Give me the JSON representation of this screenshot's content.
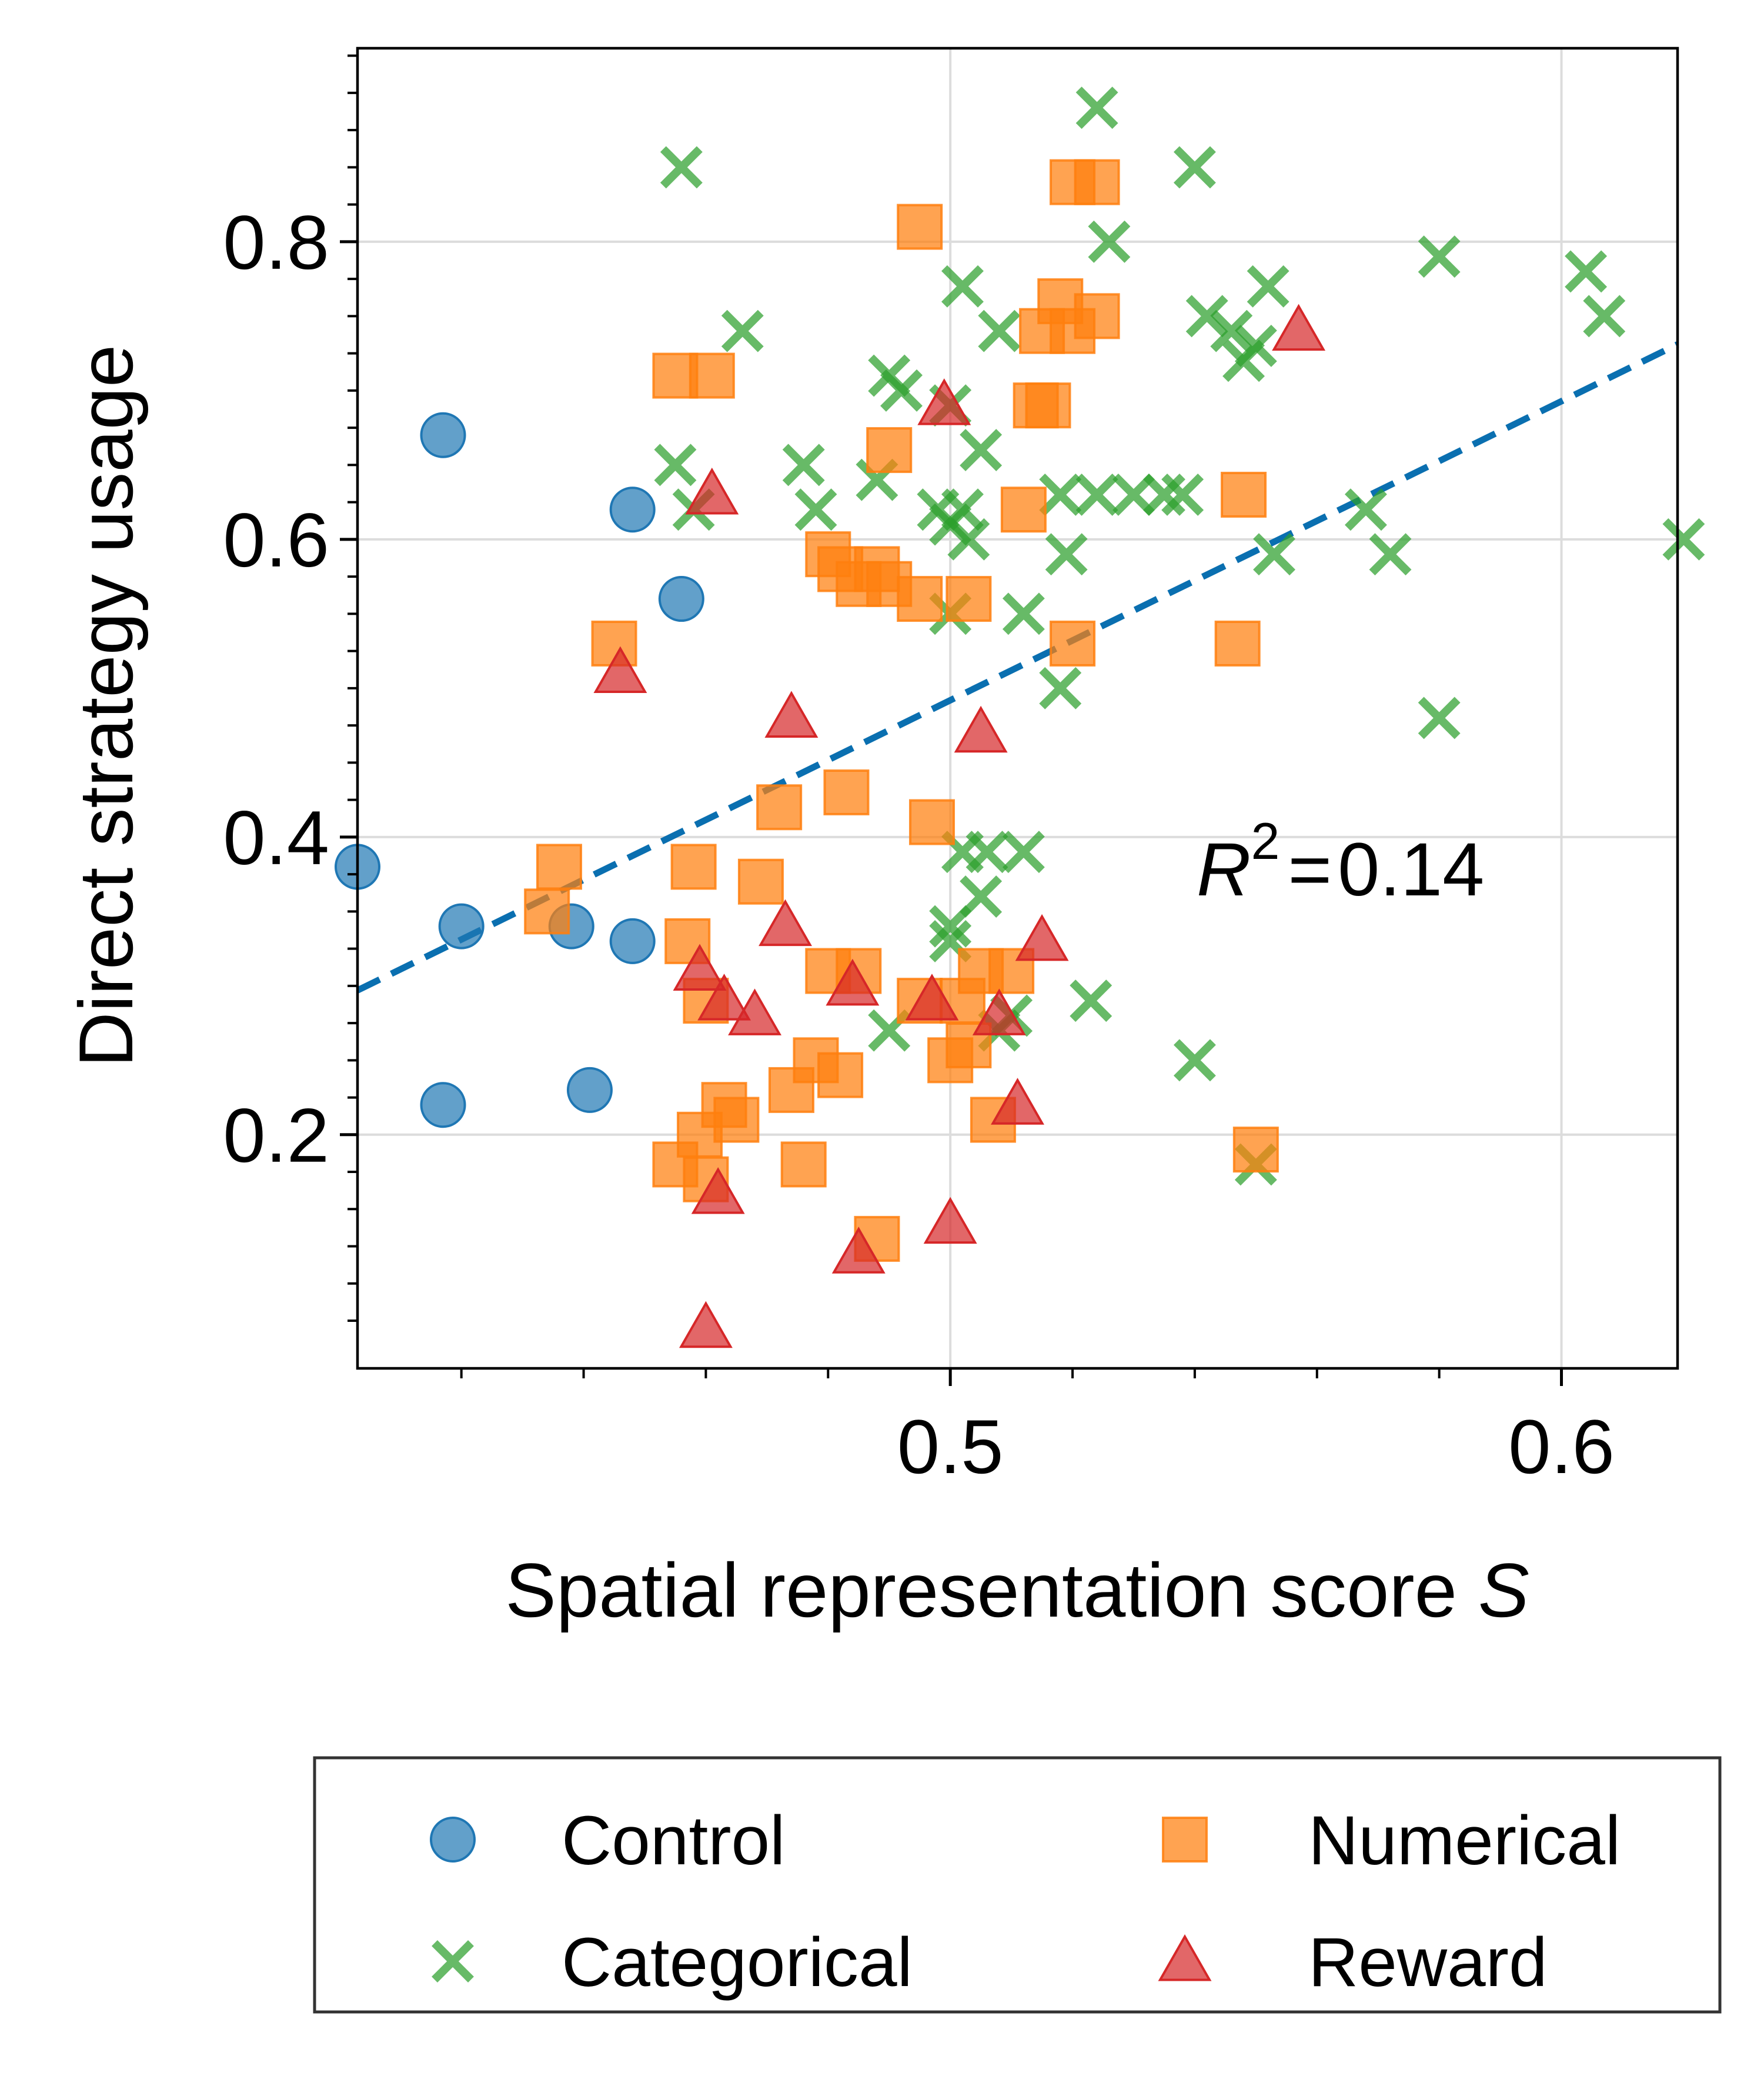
{
  "chart_data": {
    "type": "scatter",
    "xlabel": "Spatial representation score",
    "xlabel_var": "S",
    "ylabel": "Direct strategy usage",
    "xlim": [
      0.403,
      0.619
    ],
    "ylim": [
      0.043,
      0.93
    ],
    "x_ticks": [
      0.5,
      0.6
    ],
    "x_tick_labels": [
      "0.5",
      "0.6"
    ],
    "y_ticks": [
      0.2,
      0.4,
      0.6,
      0.8
    ],
    "y_tick_labels": [
      "0.2",
      "0.4",
      "0.6",
      "0.8"
    ],
    "grid": true,
    "legend_placement": "below",
    "annotation": {
      "r_symbol": "R",
      "sup": "2",
      "eq": "=",
      "value": "0.14"
    },
    "fit_line": {
      "x": [
        0.403,
        0.619
      ],
      "y": [
        0.297,
        0.731
      ],
      "color": "#0a6fb0"
    },
    "series": [
      {
        "name": "Control",
        "marker": "circle",
        "color": "#1f77b4",
        "points": [
          [
            0.403,
            0.38
          ],
          [
            0.42,
            0.34
          ],
          [
            0.417,
            0.67
          ],
          [
            0.417,
            0.22
          ],
          [
            0.438,
            0.34
          ],
          [
            0.441,
            0.23
          ],
          [
            0.448,
            0.62
          ],
          [
            0.448,
            0.33
          ],
          [
            0.456,
            0.56
          ]
        ]
      },
      {
        "name": "Categorical",
        "marker": "x",
        "color": "#2ca02c",
        "points": [
          [
            0.456,
            0.85
          ],
          [
            0.455,
            0.65
          ],
          [
            0.458,
            0.62
          ],
          [
            0.466,
            0.74
          ],
          [
            0.476,
            0.65
          ],
          [
            0.478,
            0.62
          ],
          [
            0.49,
            0.71
          ],
          [
            0.492,
            0.7
          ],
          [
            0.488,
            0.64
          ],
          [
            0.498,
            0.62
          ],
          [
            0.5,
            0.69
          ],
          [
            0.5,
            0.61
          ],
          [
            0.502,
            0.62
          ],
          [
            0.503,
            0.6
          ],
          [
            0.502,
            0.77
          ],
          [
            0.508,
            0.74
          ],
          [
            0.505,
            0.66
          ],
          [
            0.5,
            0.55
          ],
          [
            0.5,
            0.34
          ],
          [
            0.5,
            0.33
          ],
          [
            0.502,
            0.39
          ],
          [
            0.506,
            0.39
          ],
          [
            0.505,
            0.36
          ],
          [
            0.512,
            0.39
          ],
          [
            0.512,
            0.55
          ],
          [
            0.518,
            0.63
          ],
          [
            0.519,
            0.59
          ],
          [
            0.518,
            0.5
          ],
          [
            0.524,
            0.63
          ],
          [
            0.524,
            0.89
          ],
          [
            0.526,
            0.8
          ],
          [
            0.53,
            0.63
          ],
          [
            0.535,
            0.63
          ],
          [
            0.538,
            0.63
          ],
          [
            0.54,
            0.85
          ],
          [
            0.542,
            0.75
          ],
          [
            0.546,
            0.74
          ],
          [
            0.548,
            0.72
          ],
          [
            0.55,
            0.73
          ],
          [
            0.552,
            0.77
          ],
          [
            0.553,
            0.59
          ],
          [
            0.523,
            0.29
          ],
          [
            0.54,
            0.25
          ],
          [
            0.55,
            0.18
          ],
          [
            0.51,
            0.28
          ],
          [
            0.508,
            0.27
          ],
          [
            0.49,
            0.27
          ],
          [
            0.568,
            0.62
          ],
          [
            0.572,
            0.59
          ],
          [
            0.58,
            0.79
          ],
          [
            0.58,
            0.48
          ],
          [
            0.604,
            0.78
          ],
          [
            0.607,
            0.75
          ],
          [
            0.62,
            0.6
          ]
        ]
      },
      {
        "name": "Numerical",
        "marker": "square",
        "color": "#ff7f0e",
        "points": [
          [
            0.436,
            0.38
          ],
          [
            0.434,
            0.35
          ],
          [
            0.445,
            0.53
          ],
          [
            0.455,
            0.71
          ],
          [
            0.461,
            0.71
          ],
          [
            0.458,
            0.38
          ],
          [
            0.457,
            0.33
          ],
          [
            0.46,
            0.29
          ],
          [
            0.459,
            0.2
          ],
          [
            0.463,
            0.22
          ],
          [
            0.469,
            0.37
          ],
          [
            0.472,
            0.42
          ],
          [
            0.474,
            0.23
          ],
          [
            0.478,
            0.25
          ],
          [
            0.482,
            0.24
          ],
          [
            0.476,
            0.18
          ],
          [
            0.465,
            0.21
          ],
          [
            0.455,
            0.18
          ],
          [
            0.46,
            0.17
          ],
          [
            0.48,
            0.59
          ],
          [
            0.482,
            0.58
          ],
          [
            0.485,
            0.57
          ],
          [
            0.488,
            0.58
          ],
          [
            0.49,
            0.57
          ],
          [
            0.495,
            0.56
          ],
          [
            0.503,
            0.56
          ],
          [
            0.49,
            0.66
          ],
          [
            0.495,
            0.81
          ],
          [
            0.483,
            0.43
          ],
          [
            0.497,
            0.41
          ],
          [
            0.48,
            0.31
          ],
          [
            0.485,
            0.31
          ],
          [
            0.495,
            0.29
          ],
          [
            0.502,
            0.29
          ],
          [
            0.505,
            0.31
          ],
          [
            0.51,
            0.31
          ],
          [
            0.5,
            0.25
          ],
          [
            0.503,
            0.26
          ],
          [
            0.507,
            0.21
          ],
          [
            0.488,
            0.13
          ],
          [
            0.512,
            0.62
          ],
          [
            0.514,
            0.69
          ],
          [
            0.516,
            0.69
          ],
          [
            0.518,
            0.76
          ],
          [
            0.52,
            0.74
          ],
          [
            0.52,
            0.84
          ],
          [
            0.524,
            0.84
          ],
          [
            0.524,
            0.75
          ],
          [
            0.515,
            0.74
          ],
          [
            0.52,
            0.53
          ],
          [
            0.548,
            0.63
          ],
          [
            0.547,
            0.53
          ],
          [
            0.55,
            0.19
          ]
        ]
      },
      {
        "name": "Reward",
        "marker": "triangle",
        "color": "#d62728",
        "points": [
          [
            0.446,
            0.51
          ],
          [
            0.461,
            0.63
          ],
          [
            0.459,
            0.31
          ],
          [
            0.463,
            0.29
          ],
          [
            0.468,
            0.28
          ],
          [
            0.474,
            0.48
          ],
          [
            0.473,
            0.34
          ],
          [
            0.484,
            0.3
          ],
          [
            0.485,
            0.12
          ],
          [
            0.46,
            0.07
          ],
          [
            0.462,
            0.16
          ],
          [
            0.497,
            0.29
          ],
          [
            0.5,
            0.14
          ],
          [
            0.499,
            0.69
          ],
          [
            0.505,
            0.47
          ],
          [
            0.508,
            0.28
          ],
          [
            0.511,
            0.22
          ],
          [
            0.515,
            0.33
          ],
          [
            0.557,
            0.74
          ]
        ]
      }
    ]
  }
}
